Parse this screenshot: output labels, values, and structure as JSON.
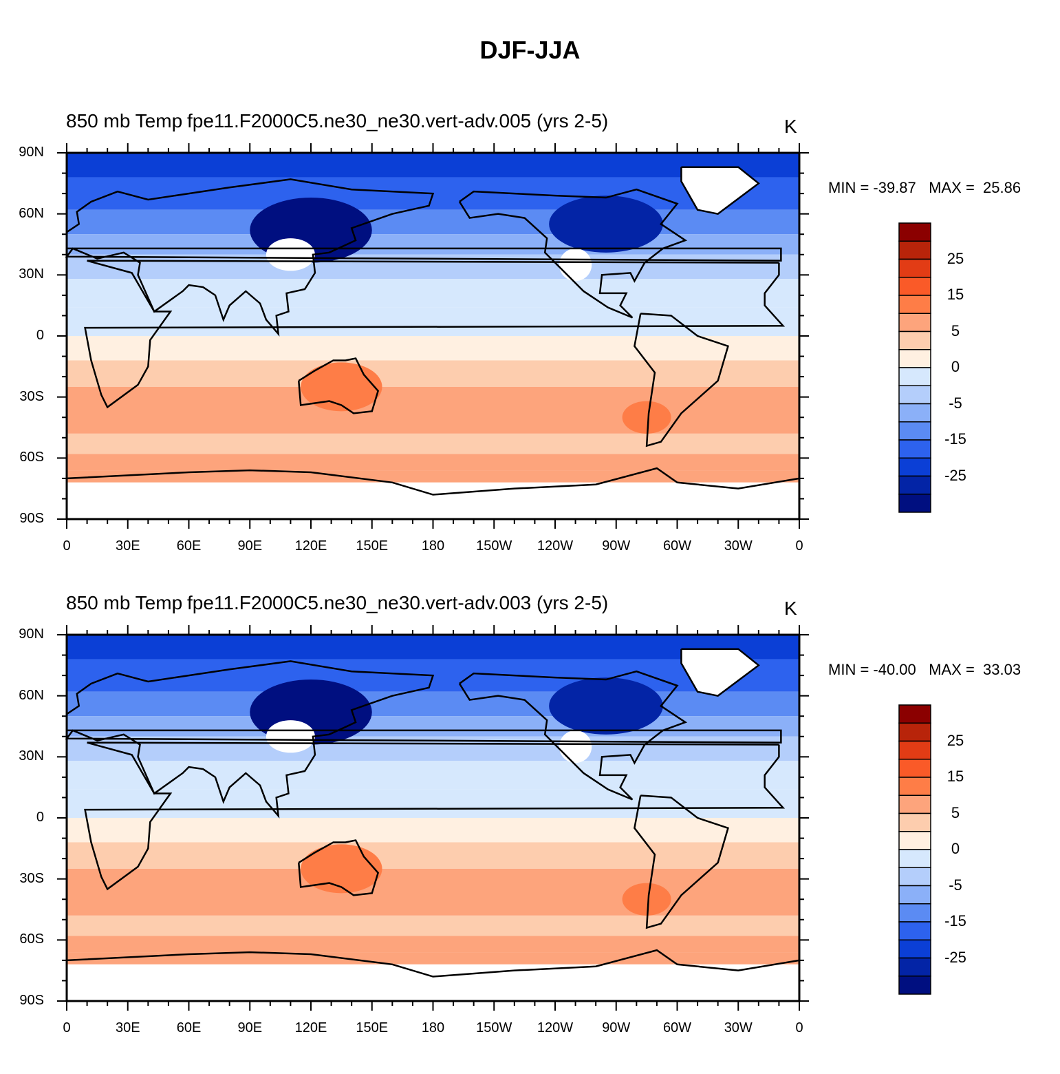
{
  "figure": {
    "title": "DJF-JJA"
  },
  "panels": [
    {
      "title_left": "850 mb Temp",
      "title_case": "fpe11.F2000C5.ne30_ne30.vert-adv.005 (yrs 2-5)",
      "units": "K",
      "min_label": "MIN = -39.87",
      "max_label": "MAX =  25.86"
    },
    {
      "title_left": "850 mb Temp",
      "title_case": "fpe11.F2000C5.ne30_ne30.vert-adv.003 (yrs 2-5)",
      "units": "K",
      "min_label": "MIN = -40.00",
      "max_label": "MAX =  33.03"
    }
  ],
  "axes": {
    "lat_labels": [
      "90N",
      "60N",
      "30N",
      "0",
      "30S",
      "60S",
      "90S"
    ],
    "lon_labels": [
      "0",
      "30E",
      "60E",
      "90E",
      "120E",
      "150E",
      "180",
      "150W",
      "120W",
      "90W",
      "60W",
      "30W",
      "0"
    ]
  },
  "colorbar": {
    "labels": [
      "25",
      "15",
      "5",
      "0",
      "-5",
      "-15",
      "-25"
    ],
    "colors": [
      "#8b0000",
      "#b8240a",
      "#e23c15",
      "#fa5a28",
      "#fe7d47",
      "#fda47c",
      "#fdcdae",
      "#fff0e1",
      "#d6e8fd",
      "#b4cefb",
      "#8bb0f8",
      "#5b8bf3",
      "#2d62ee",
      "#0b3fd6",
      "#0324a6",
      "#000f80"
    ]
  },
  "chart_data": [
    {
      "type": "heatmap",
      "title": "850 mb Temp",
      "subtitle": "fpe11.F2000C5.ne30_ne30.vert-adv.005 (yrs 2-5)",
      "units": "K",
      "x_range": [
        0,
        360
      ],
      "y_range": [
        -90,
        90
      ],
      "min": -39.87,
      "max": 25.86,
      "contour_levels": [
        -35,
        -30,
        -25,
        -20,
        -15,
        -10,
        -5,
        -2.5,
        0,
        2.5,
        5,
        10,
        15,
        20,
        25,
        30
      ]
    },
    {
      "type": "heatmap",
      "title": "850 mb Temp",
      "subtitle": "fpe11.F2000C5.ne30_ne30.vert-adv.003 (yrs 2-5)",
      "units": "K",
      "x_range": [
        0,
        360
      ],
      "y_range": [
        -90,
        90
      ],
      "min": -40.0,
      "max": 33.03,
      "contour_levels": [
        -35,
        -30,
        -25,
        -20,
        -15,
        -10,
        -5,
        -2.5,
        0,
        2.5,
        5,
        10,
        15,
        20,
        25,
        30
      ]
    }
  ]
}
